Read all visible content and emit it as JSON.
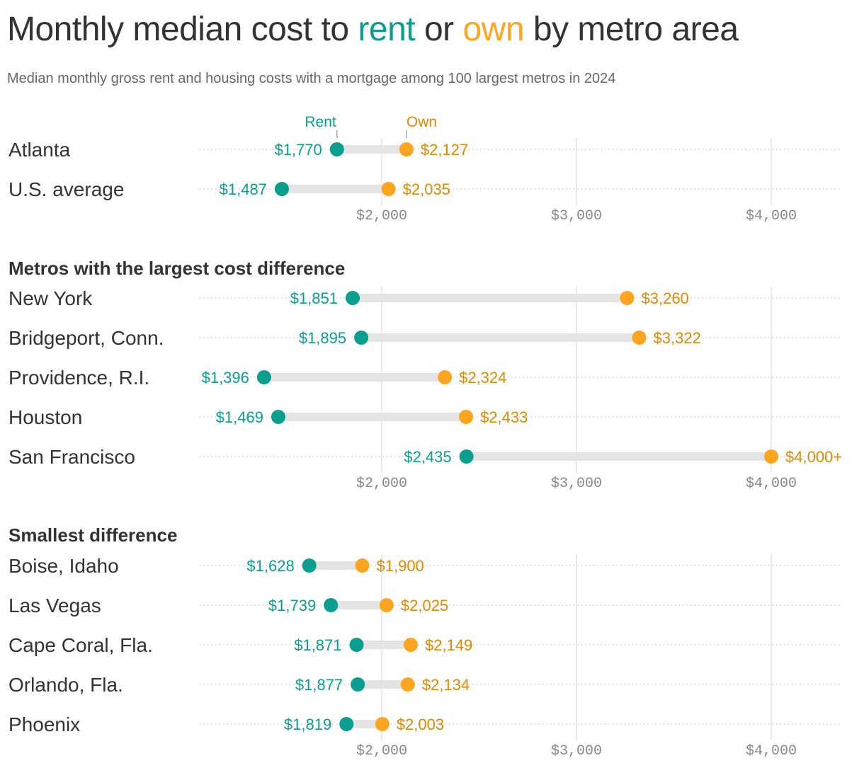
{
  "header": {
    "title_parts": [
      "Monthly median cost to ",
      "rent",
      " or ",
      "own",
      " by metro area"
    ],
    "subtitle": "Median monthly gross rent and housing costs with a mortgage among 100 largest metros in 2024"
  },
  "colors": {
    "rent": "#0a9e8f",
    "own": "#ffa51f",
    "own_label": "#e08a00",
    "bar": "#e4e4e4",
    "axis": "#888888",
    "text": "#333333"
  },
  "chart_data": {
    "type": "dumbbell",
    "legend": {
      "rent": "Rent",
      "own": "Own"
    },
    "xlim": [
      1065,
      4330
    ],
    "xticks": [
      2000,
      3000,
      4000
    ],
    "xtick_labels": [
      "$2,000",
      "$3,000",
      "$4,000"
    ],
    "panels": [
      {
        "heading": "",
        "rows": [
          {
            "label": "Atlanta",
            "rent": 1770,
            "own": 2127,
            "rent_label": "$1,770",
            "own_label": "$2,127"
          },
          {
            "label": "U.S. average",
            "rent": 1487,
            "own": 2035,
            "rent_label": "$1,487",
            "own_label": "$2,035"
          }
        ]
      },
      {
        "heading": "Metros with the largest cost difference",
        "rows": [
          {
            "label": "New York",
            "rent": 1851,
            "own": 3260,
            "rent_label": "$1,851",
            "own_label": "$3,260"
          },
          {
            "label": "Bridgeport, Conn.",
            "rent": 1895,
            "own": 3322,
            "rent_label": "$1,895",
            "own_label": "$3,322"
          },
          {
            "label": "Providence, R.I.",
            "rent": 1396,
            "own": 2324,
            "rent_label": "$1,396",
            "own_label": "$2,324"
          },
          {
            "label": "Houston",
            "rent": 1469,
            "own": 2433,
            "rent_label": "$1,469",
            "own_label": "$2,433"
          },
          {
            "label": "San Francisco",
            "rent": 2435,
            "own": 4000,
            "rent_label": "$2,435",
            "own_label": "$4,000+"
          }
        ]
      },
      {
        "heading": "Smallest difference",
        "rows": [
          {
            "label": "Boise, Idaho",
            "rent": 1628,
            "own": 1900,
            "rent_label": "$1,628",
            "own_label": "$1,900"
          },
          {
            "label": "Las Vegas",
            "rent": 1739,
            "own": 2025,
            "rent_label": "$1,739",
            "own_label": "$2,025"
          },
          {
            "label": "Cape Coral, Fla.",
            "rent": 1871,
            "own": 2149,
            "rent_label": "$1,871",
            "own_label": "$2,149"
          },
          {
            "label": "Orlando, Fla.",
            "rent": 1877,
            "own": 2134,
            "rent_label": "$1,877",
            "own_label": "$2,134"
          },
          {
            "label": "Phoenix",
            "rent": 1819,
            "own": 2003,
            "rent_label": "$1,819",
            "own_label": "$2,003"
          }
        ]
      }
    ]
  }
}
